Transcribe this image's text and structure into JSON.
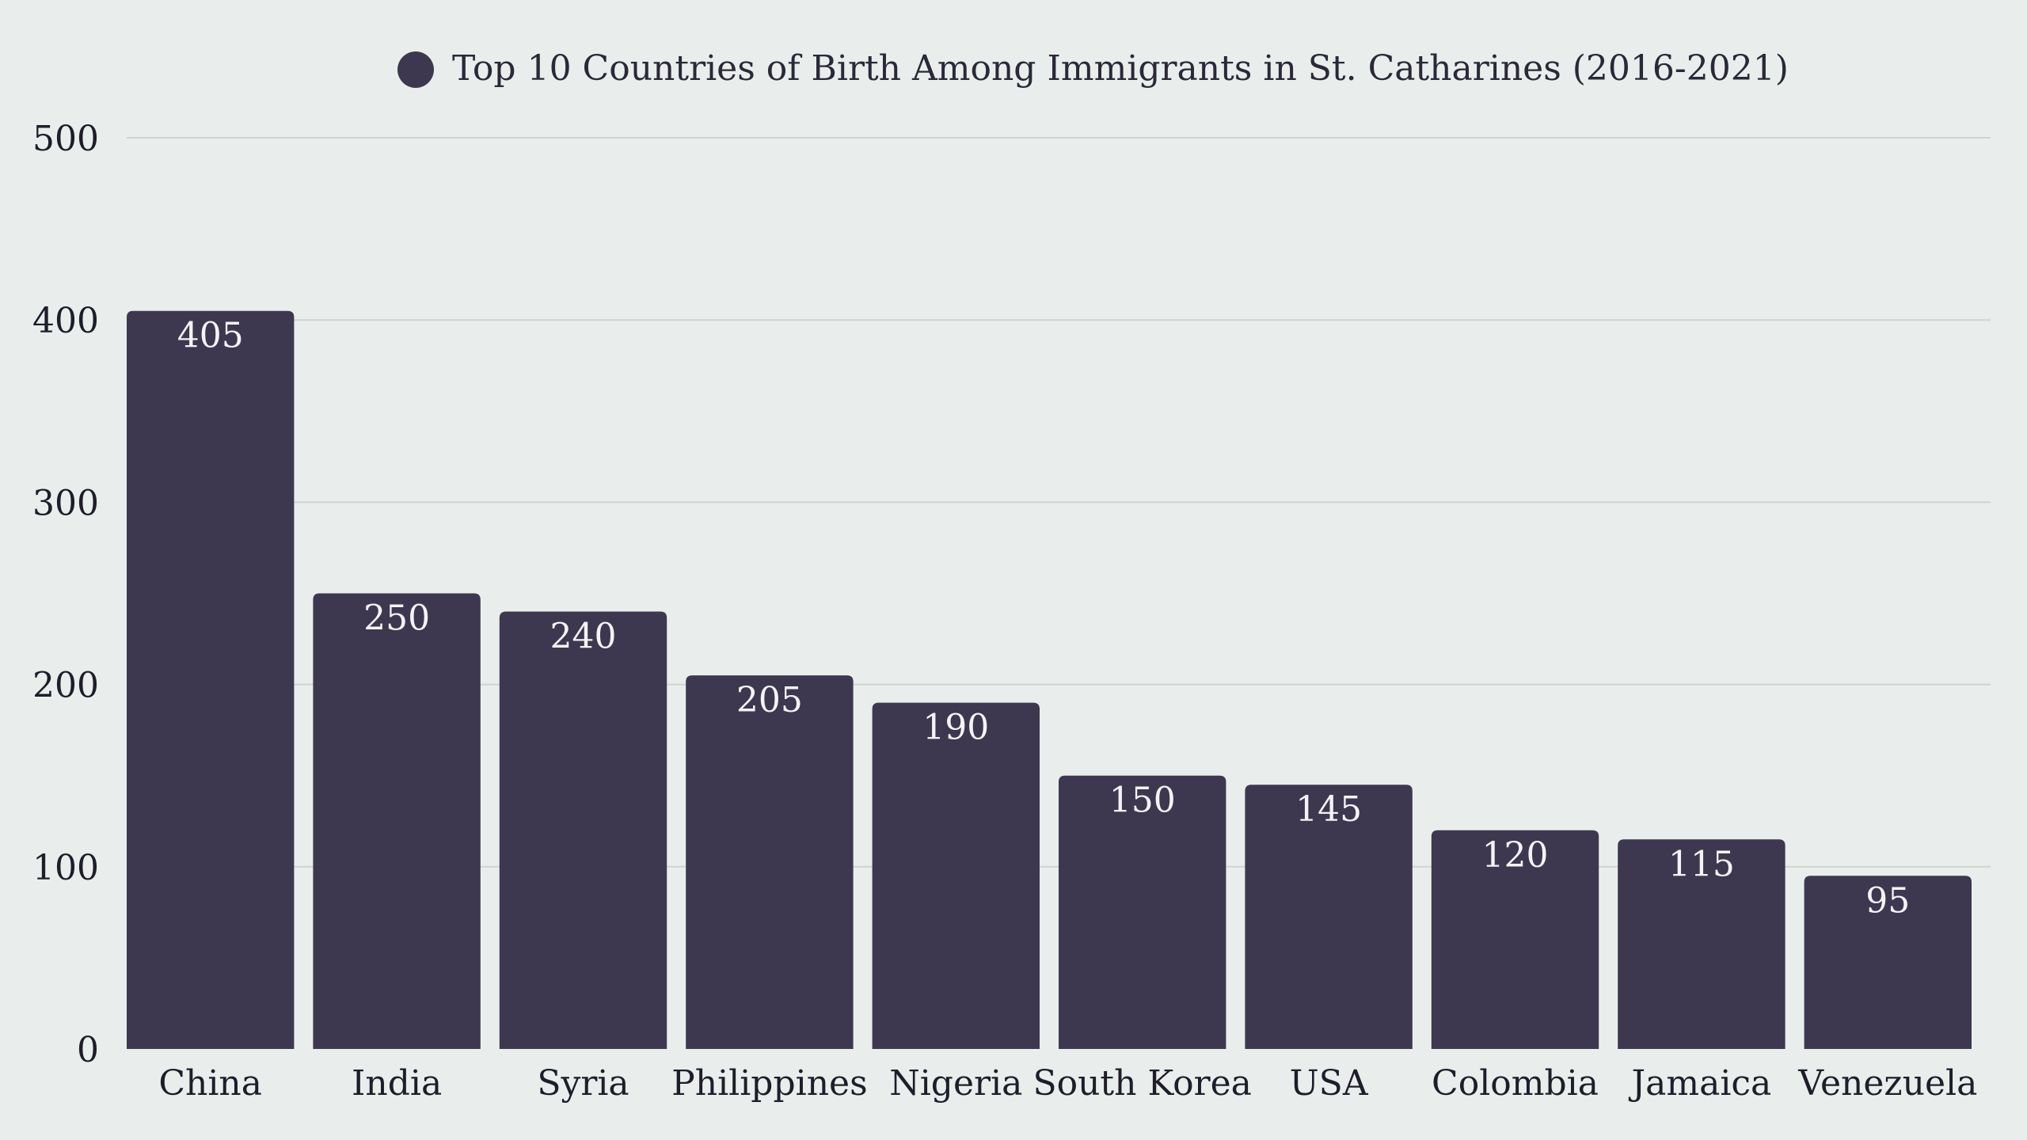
{
  "chart_data": {
    "type": "bar",
    "legend": {
      "label": "Top 10 Countries of Birth Among Immigrants in St. Catharines (2016-2021)",
      "placement": "top-center"
    },
    "categories": [
      "China",
      "India",
      "Syria",
      "Philippines",
      "Nigeria",
      "South Korea",
      "USA",
      "Colombia",
      "Jamaica",
      "Venezuela"
    ],
    "series": [
      {
        "name": "Top 10 Countries of Birth Among Immigrants in St. Catharines (2016-2021)",
        "values": [
          405,
          250,
          240,
          205,
          190,
          150,
          145,
          120,
          115,
          95
        ]
      }
    ],
    "ylim": [
      0,
      500
    ],
    "yticks": [
      0,
      100,
      200,
      300,
      400,
      500
    ],
    "grid": true,
    "data_labels": true,
    "xlabel": "",
    "ylabel": ""
  },
  "colors": {
    "bar": "#3d384f",
    "background": "#e9eeec",
    "grid": "#cfd4d2"
  }
}
